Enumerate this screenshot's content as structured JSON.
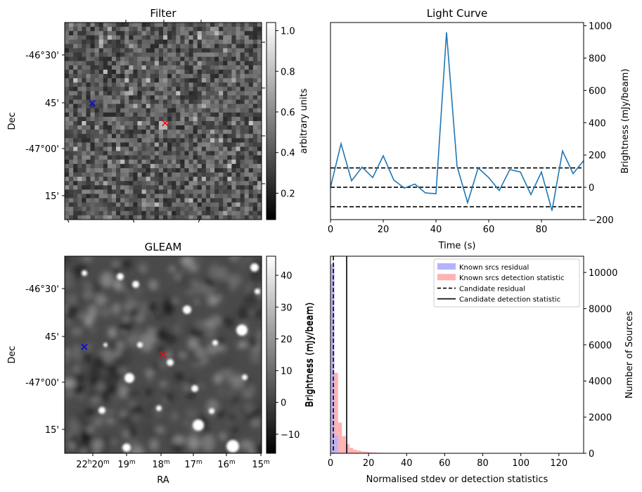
{
  "figure": {
    "panels": [
      {
        "id": "filter",
        "title": "Filter",
        "ylabel": "Dec",
        "colorbar_label": "arbitrary units",
        "colorbar_range": [
          0.07,
          1.04
        ],
        "colorbar_ticks": [
          "0.2",
          "0.4",
          "0.6",
          "0.8",
          "1.0"
        ],
        "colorbar_tick_values": [
          0.2,
          0.4,
          0.6,
          0.8,
          1.0
        ],
        "dec_ticks": [
          "-46°30'",
          "45'",
          "-47°00'",
          "15'"
        ],
        "markers": [
          {
            "label": "blue-x",
            "color": "#0000ff",
            "pixel_fraction": [
              0.14,
              0.41
            ]
          },
          {
            "label": "red-x",
            "color": "#ff0000",
            "pixel_fraction": [
              0.51,
              0.51
            ]
          }
        ]
      },
      {
        "id": "gleam",
        "title": "GLEAM",
        "xlabel": "RA",
        "ylabel": "Dec",
        "colorbar_label": "Brightness (mJy/beam)",
        "colorbar_range": [
          -16,
          46
        ],
        "colorbar_ticks": [
          "40",
          "30",
          "20",
          "10",
          "0",
          "−10"
        ],
        "colorbar_tick_values": [
          40,
          30,
          20,
          10,
          0,
          -10
        ],
        "dec_ticks": [
          "-46°30'",
          "45'",
          "-47°00'",
          "15'"
        ],
        "ra_ticks": [
          {
            "base": "22",
            "sup": "h",
            "base2": "20",
            "sup2": "m"
          },
          {
            "base": "19",
            "sup": "m"
          },
          {
            "base": "18",
            "sup": "m"
          },
          {
            "base": "17",
            "sup": "m"
          },
          {
            "base": "16",
            "sup": "m"
          },
          {
            "base": "15",
            "sup": "m"
          }
        ],
        "markers": [
          {
            "label": "blue-x",
            "color": "#0000ff",
            "pixel_fraction": [
              0.1,
              0.46
            ]
          },
          {
            "label": "red-x",
            "color": "#ff0000",
            "pixel_fraction": [
              0.5,
              0.5
            ]
          }
        ]
      }
    ]
  },
  "chart_data": [
    {
      "type": "line",
      "title": "Light Curve",
      "xlabel": "Time (s)",
      "ylabel": "Brightness (mJy/beam)",
      "xlim": [
        0,
        96
      ],
      "ylim": [
        -200,
        1020
      ],
      "xticks": [
        0,
        20,
        40,
        60,
        80
      ],
      "yticks": [
        -200,
        0,
        200,
        400,
        600,
        800,
        1000
      ],
      "series": [
        {
          "color": "#1f77b4",
          "x": [
            0,
            4,
            8,
            12,
            16,
            20,
            24,
            28,
            32,
            36,
            40,
            44,
            48,
            52,
            56,
            60,
            64,
            68,
            72,
            76,
            80,
            84,
            88,
            92,
            96
          ],
          "y": [
            0,
            270,
            40,
            125,
            60,
            195,
            45,
            -5,
            20,
            -35,
            -40,
            960,
            130,
            -95,
            120,
            60,
            -20,
            110,
            95,
            -45,
            95,
            -145,
            225,
            85,
            165
          ]
        }
      ],
      "hlines": [
        {
          "y": 120,
          "style": "dashed",
          "color": "#000000"
        },
        {
          "y": 0,
          "style": "dashed",
          "color": "#000000"
        },
        {
          "y": -120,
          "style": "dashed",
          "color": "#000000"
        }
      ]
    },
    {
      "type": "histogram",
      "title": "",
      "xlabel": "Normalised stdev or detection statistics",
      "ylabel_left": "Brightness (mJy/beam)",
      "ylabel_right": "Number of Sources",
      "xlim": [
        0,
        133
      ],
      "ylim": [
        0,
        10900
      ],
      "xticks": [
        0,
        20,
        40,
        60,
        80,
        100,
        120
      ],
      "yticks": [
        0,
        2000,
        4000,
        6000,
        8000,
        10000
      ],
      "bin_width": 2,
      "series": [
        {
          "name": "Known srcs residual",
          "color": "#b3b3ff",
          "bin_start": 0,
          "counts": [
            10450,
            1000,
            50,
            5
          ]
        },
        {
          "name": "Known srcs detection statistic",
          "color": "#ffb3b3",
          "bin_start": 0,
          "counts": [
            10450,
            4450,
            1700,
            950,
            500,
            300,
            200,
            150,
            100,
            80,
            60,
            45,
            35,
            30,
            25,
            20,
            15,
            12,
            10,
            8,
            6,
            5,
            4,
            4,
            3,
            3,
            2,
            2,
            2,
            2,
            1,
            1
          ]
        }
      ],
      "vlines": [
        {
          "name": "Candidate residual",
          "x": 1.5,
          "style": "dashed",
          "color": "#000000"
        },
        {
          "name": "Candidate detection statistic",
          "x": 8.5,
          "style": "solid",
          "color": "#000000"
        }
      ],
      "legend_position": "top-right"
    }
  ]
}
